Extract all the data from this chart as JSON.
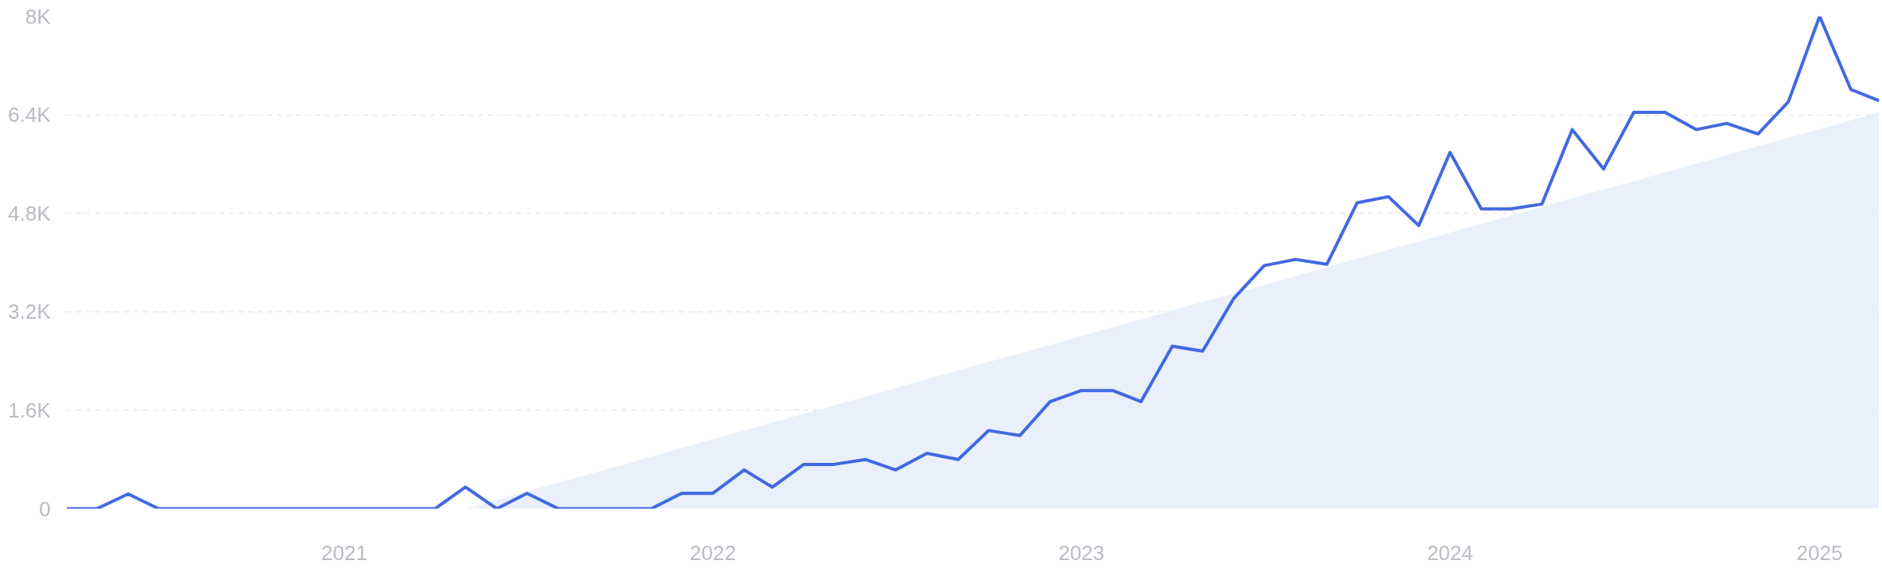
{
  "chart_data": {
    "type": "line",
    "x": [
      "2020-04",
      "2020-05",
      "2020-06",
      "2020-07",
      "2020-08",
      "2020-09",
      "2020-10",
      "2020-11",
      "2020-12",
      "2021-01",
      "2021-02",
      "2021-03",
      "2021-04",
      "2021-05",
      "2021-06",
      "2021-07",
      "2021-08",
      "2021-09",
      "2021-10",
      "2021-11",
      "2021-12",
      "2022-01",
      "2022-02",
      "2022-03",
      "2022-04",
      "2022-05",
      "2022-06",
      "2022-07",
      "2022-08",
      "2022-09",
      "2022-10",
      "2022-11",
      "2022-12",
      "2023-01",
      "2023-02",
      "2023-03",
      "2023-04",
      "2023-05",
      "2023-06",
      "2023-07",
      "2023-08",
      "2023-09",
      "2023-10",
      "2023-11",
      "2023-12",
      "2024-01",
      "2024-02",
      "2024-03",
      "2024-04",
      "2024-05",
      "2024-06",
      "2024-07",
      "2024-08",
      "2024-09",
      "2024-10",
      "2024-11",
      "2024-12",
      "2025-01",
      "2025-02",
      "2025-03"
    ],
    "series": [
      {
        "type": "area",
        "color": "#e9f0fb",
        "x": [
          "2021-05",
          "2025-03"
        ],
        "values": [
          0,
          6440
        ]
      },
      {
        "color": "#4169e1",
        "values": [
          0,
          0,
          240,
          0,
          0,
          0,
          0,
          0,
          0,
          0,
          0,
          0,
          0,
          350,
          0,
          250,
          0,
          0,
          0,
          0,
          250,
          250,
          630,
          350,
          720,
          720,
          800,
          630,
          900,
          800,
          1270,
          1190,
          1740,
          1920,
          1920,
          1740,
          2640,
          2560,
          3420,
          3950,
          4050,
          3970,
          4970,
          5070,
          4600,
          5790,
          4870,
          4870,
          4950,
          6160,
          5520,
          6440,
          6440,
          6160,
          6260,
          6090,
          6610,
          8000,
          6810,
          6630
        ]
      }
    ],
    "xlim": [
      "2020-04",
      "2025-03"
    ],
    "xticks": [
      "2021",
      "2022",
      "2023",
      "2024",
      "2025"
    ],
    "ylim": [
      0,
      8000
    ],
    "yticks": [
      0,
      {
        "value": 1600,
        "label": "1.6K"
      },
      {
        "value": 3200,
        "label": "3.2K"
      },
      {
        "value": 4800,
        "label": "4.8K"
      },
      {
        "value": 6400,
        "label": "6.4K"
      },
      {
        "value": 8000,
        "label": "8K"
      }
    ],
    "grid": "y",
    "marker": "none",
    "line_style": "solid"
  }
}
